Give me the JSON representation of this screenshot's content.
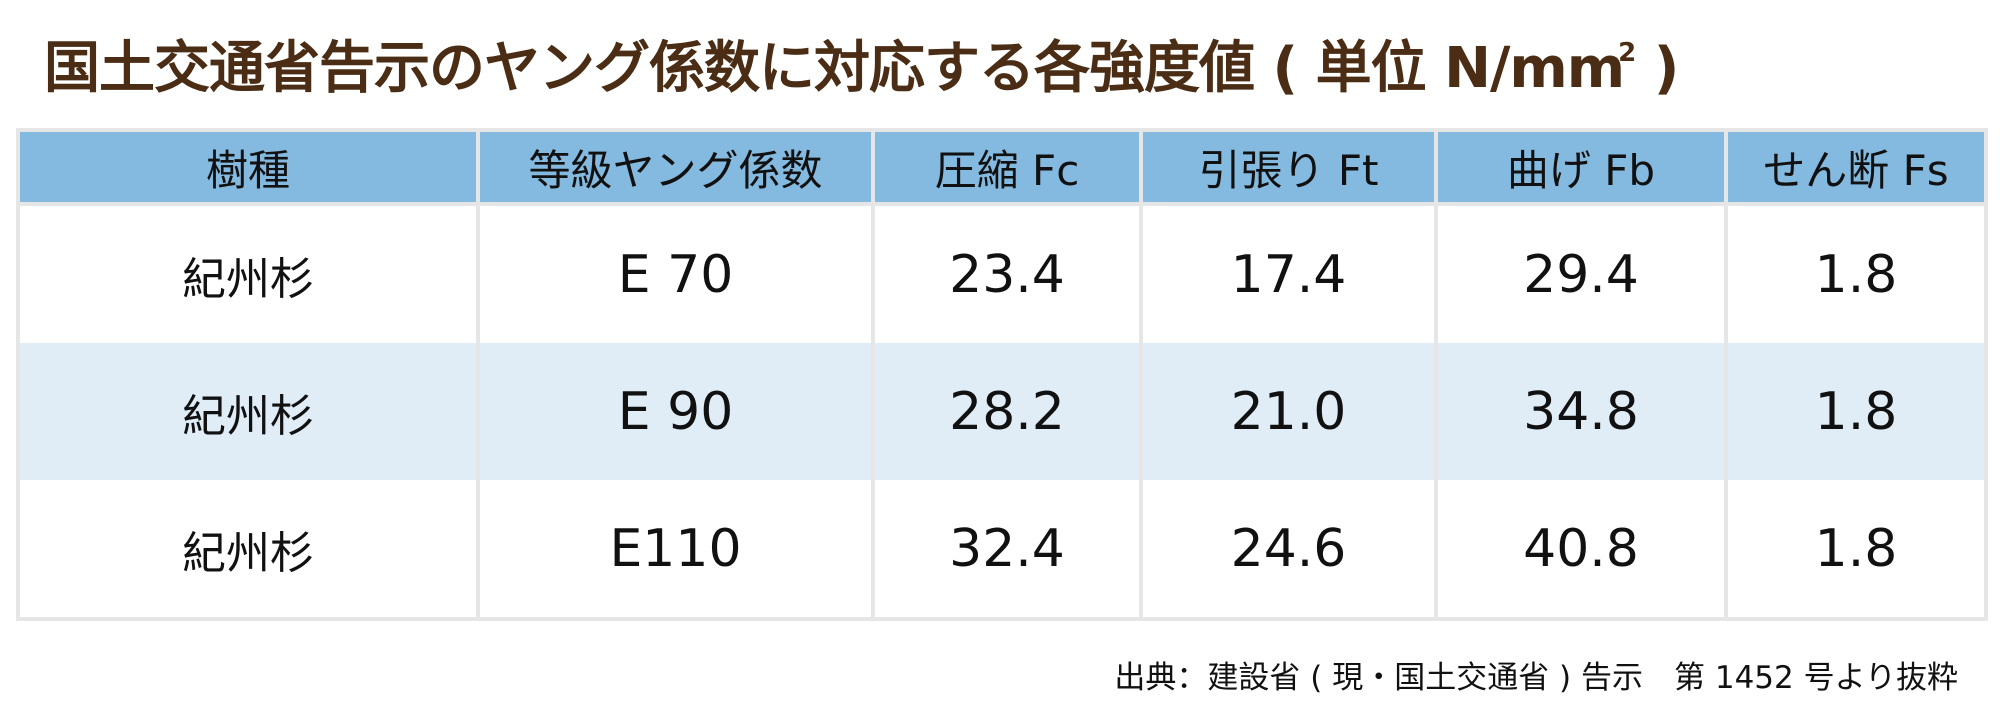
{
  "title": {
    "main": "国土交通省告示のヤング係数に対応する各強度値 ( 単位 N/mm",
    "superscript": "2",
    "closing": " )"
  },
  "table": {
    "headers": [
      "樹種",
      "等級ヤング係数",
      "圧縮 Fc",
      "引張り Ft",
      "曲げ Fb",
      "せん断 Fs"
    ],
    "rows": [
      [
        "紀州杉",
        "E 70",
        "23.4",
        "17.4",
        "29.4",
        "1.8"
      ],
      [
        "紀州杉",
        "E 90",
        "28.2",
        "21.0",
        "34.8",
        "1.8"
      ],
      [
        "紀州杉",
        "E110",
        "32.4",
        "24.6",
        "40.8",
        "1.8"
      ]
    ]
  },
  "source": "出典：建設省 ( 現・国土交通省 ) 告示　第 1452 号より抜粋",
  "colors": {
    "title": "#4a2d14",
    "header_bg": "#84b9e0",
    "alt_row_bg": "#e0edf7",
    "border": "#e6e6e6"
  }
}
